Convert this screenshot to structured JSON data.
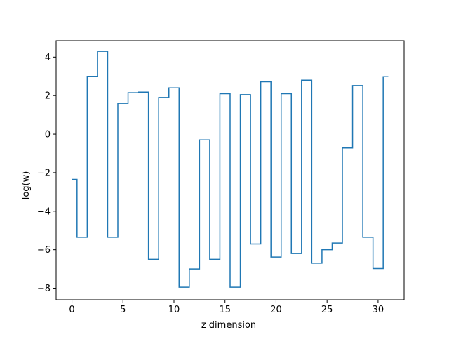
{
  "chart_data": {
    "type": "line",
    "drawstyle": "steps-mid",
    "title": "",
    "xlabel": "z dimension",
    "ylabel": "log(w)",
    "xlim": [
      -1.55,
      32.55
    ],
    "ylim": [
      -8.6,
      4.85
    ],
    "grid": false,
    "legend": "none",
    "xticks": [
      0,
      5,
      10,
      15,
      20,
      25,
      30
    ],
    "yticks": [
      -8,
      -6,
      -4,
      -2,
      0,
      2,
      4
    ],
    "line_color": "#1f77b4",
    "series": [
      {
        "name": "",
        "x": [
          0,
          1,
          2,
          3,
          4,
          5,
          6,
          7,
          8,
          9,
          10,
          11,
          12,
          13,
          14,
          15,
          16,
          17,
          18,
          19,
          20,
          21,
          22,
          23,
          24,
          25,
          26,
          27,
          28,
          29,
          30,
          31
        ],
        "values": [
          -2.35,
          -5.35,
          3.0,
          4.3,
          -5.35,
          1.6,
          2.15,
          2.18,
          -6.5,
          1.9,
          2.4,
          -7.95,
          -7.0,
          -0.3,
          -6.5,
          2.1,
          -7.95,
          2.05,
          -5.7,
          2.72,
          -6.38,
          2.1,
          -6.2,
          2.8,
          -6.7,
          -6.0,
          -5.65,
          -0.72,
          2.52,
          -5.35,
          -6.98,
          2.98
        ]
      }
    ]
  }
}
